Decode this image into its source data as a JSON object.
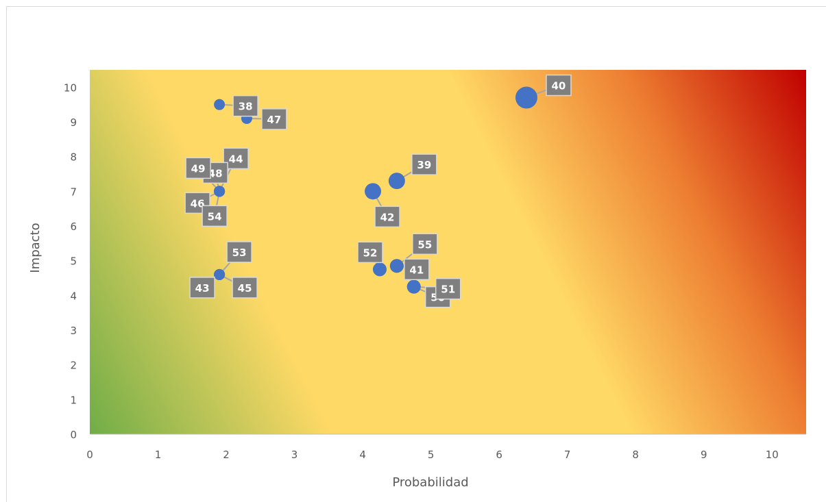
{
  "chart_data": {
    "type": "bubble-scatter",
    "xlabel": "Probabilidad",
    "ylabel": "Impacto",
    "xlim": [
      0,
      10.5
    ],
    "ylim": [
      0,
      10.5
    ],
    "x_ticks": [
      "0",
      "1",
      "2",
      "3",
      "4",
      "5",
      "6",
      "7",
      "8",
      "9",
      "10"
    ],
    "y_ticks": [
      "0",
      "1",
      "2",
      "3",
      "4",
      "5",
      "6",
      "7",
      "8",
      "9",
      "10"
    ],
    "background": "diagonal gradient green (low-left) - yellow - red (top-right)",
    "colors": {
      "green": "#70ad47",
      "yellow": "#ffd966",
      "orange": "#ed7d31",
      "red": "#c00000",
      "point": "#4472c4",
      "label_box": "#7f7f7f",
      "label_text": "#ffffff"
    },
    "points": [
      {
        "label": "38",
        "x": 1.9,
        "y": 9.5,
        "size": 1
      },
      {
        "label": "47",
        "x": 2.3,
        "y": 9.1,
        "size": 1
      },
      {
        "label": "40",
        "x": 6.4,
        "y": 9.7,
        "size": 3
      },
      {
        "label": "39",
        "x": 4.5,
        "y": 7.3,
        "size": 2
      },
      {
        "label": "42",
        "x": 4.15,
        "y": 7.0,
        "size": 2
      },
      {
        "label": "44",
        "x": 1.9,
        "y": 7.0,
        "size": 1
      },
      {
        "label": "48",
        "x": 1.9,
        "y": 7.0,
        "size": 1
      },
      {
        "label": "49",
        "x": 1.9,
        "y": 7.0,
        "size": 1
      },
      {
        "label": "46",
        "x": 1.9,
        "y": 7.0,
        "size": 1
      },
      {
        "label": "54",
        "x": 1.9,
        "y": 7.0,
        "size": 1
      },
      {
        "label": "53",
        "x": 1.9,
        "y": 4.6,
        "size": 1
      },
      {
        "label": "43",
        "x": 1.9,
        "y": 4.6,
        "size": 1
      },
      {
        "label": "45",
        "x": 1.9,
        "y": 4.6,
        "size": 1
      },
      {
        "label": "52",
        "x": 4.25,
        "y": 4.75,
        "size": 1.5
      },
      {
        "label": "55",
        "x": 4.5,
        "y": 4.85,
        "size": 1.5
      },
      {
        "label": "41",
        "x": 4.5,
        "y": 4.85,
        "size": 1.5
      },
      {
        "label": "50",
        "x": 4.75,
        "y": 4.25,
        "size": 1.5
      },
      {
        "label": "51",
        "x": 4.75,
        "y": 4.25,
        "size": 1.5
      }
    ]
  }
}
